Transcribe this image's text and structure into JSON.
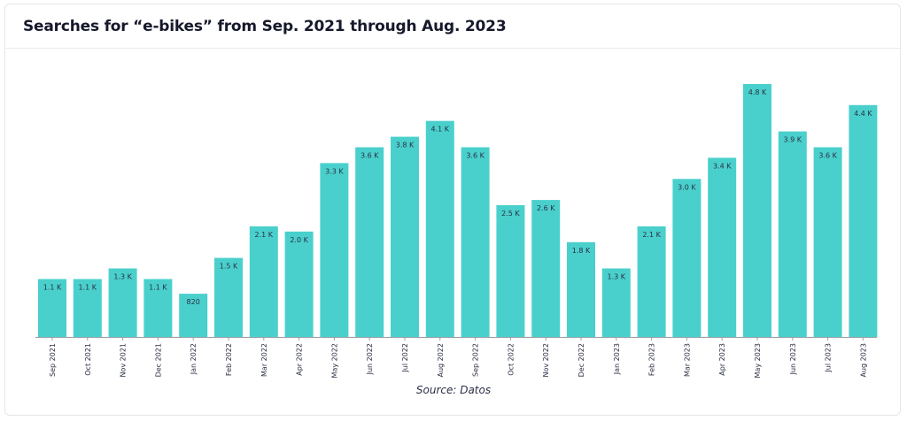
{
  "chart_data": {
    "type": "bar",
    "title": "Searches for “e-bikes” from Sep. 2021 through Aug. 2023",
    "source": "Source: Datos",
    "bar_color": "#4ad0cc",
    "categories": [
      "Sep 2021",
      "Oct 2021",
      "Nov 2021",
      "Dec 2021",
      "Jan 2022",
      "Feb 2022",
      "Mar 2022",
      "Apr 2022",
      "May 2022",
      "Jun 2022",
      "Jul 2022",
      "Aug 2022",
      "Sep 2022",
      "Oct 2022",
      "Nov 2022",
      "Dec 2022",
      "Jan 2023",
      "Feb 2023",
      "Mar 2023",
      "Apr 2023",
      "May 2023",
      "Jun 2023",
      "Jul 2023",
      "Aug 2023"
    ],
    "values": [
      1100,
      1100,
      1300,
      1100,
      820,
      1500,
      2100,
      2000,
      3300,
      3600,
      3800,
      4100,
      3600,
      2500,
      2600,
      1800,
      1300,
      2100,
      3000,
      3400,
      4800,
      3900,
      3600,
      4400
    ],
    "value_labels": [
      "1.1 K",
      "1.1 K",
      "1.3 K",
      "1.1 K",
      "820",
      "1.5 K",
      "2.1 K",
      "2.0 K",
      "3.3 K",
      "3.6 K",
      "3.8 K",
      "4.1 K",
      "3.6 K",
      "2.5 K",
      "2.6 K",
      "1.8 K",
      "1.3 K",
      "2.1 K",
      "3.0 K",
      "3.4 K",
      "4.8 K",
      "3.9 K",
      "3.6 K",
      "4.4 K"
    ],
    "xlabel": "",
    "ylabel": "",
    "ylim": [
      0,
      4800
    ],
    "grid": false,
    "legend": "none"
  }
}
